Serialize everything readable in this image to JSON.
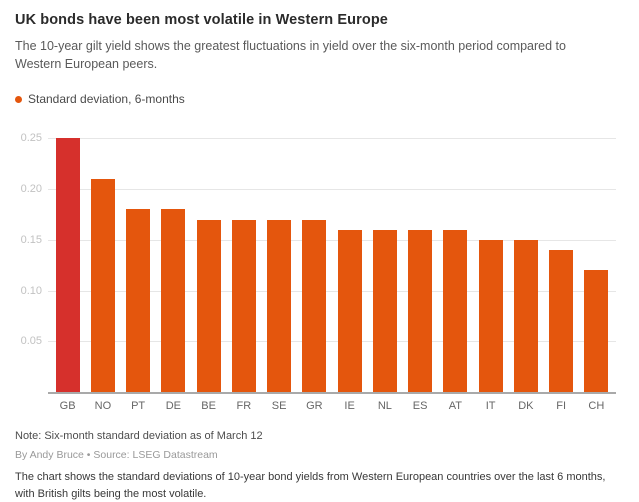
{
  "header": {
    "title": "UK bonds have been most volatile in Western Europe",
    "subtitle": "The 10-year gilt yield shows the greatest fluctuations in yield over the six-month period compared to Western European peers."
  },
  "legend": {
    "label": "Standard deviation, 6-months"
  },
  "chart_data": {
    "type": "bar",
    "title": "UK bonds have been most volatile in Western Europe",
    "categories": [
      "GB",
      "NO",
      "PT",
      "DE",
      "BE",
      "FR",
      "SE",
      "GR",
      "IE",
      "NL",
      "ES",
      "AT",
      "IT",
      "DK",
      "FI",
      "CH"
    ],
    "values": [
      0.25,
      0.21,
      0.18,
      0.18,
      0.17,
      0.17,
      0.17,
      0.17,
      0.16,
      0.16,
      0.16,
      0.16,
      0.15,
      0.15,
      0.14,
      0.12
    ],
    "series_name": "Standard deviation, 6-months",
    "xlabel": "",
    "ylabel": "",
    "ylim": [
      0,
      0.25
    ],
    "yticks": [
      0.05,
      0.1,
      0.15,
      0.2,
      0.25
    ],
    "grid": true,
    "legend_position": "top-left",
    "highlight_category": "GB",
    "colors": {
      "highlight": "#d6302c",
      "default": "#e4560d",
      "gridline": "#e6e6e6",
      "axis_line": "#a9a9a9",
      "tick_label": "#c2c2c2"
    }
  },
  "footer": {
    "note": "Note: Six-month standard deviation as of March 12",
    "byline": "By Andy Bruce • Source: LSEG Datastream",
    "description": "The chart shows the standard deviations of 10-year bond yields from Western European countries over the last 6 months, with British gilts being the most volatile."
  }
}
